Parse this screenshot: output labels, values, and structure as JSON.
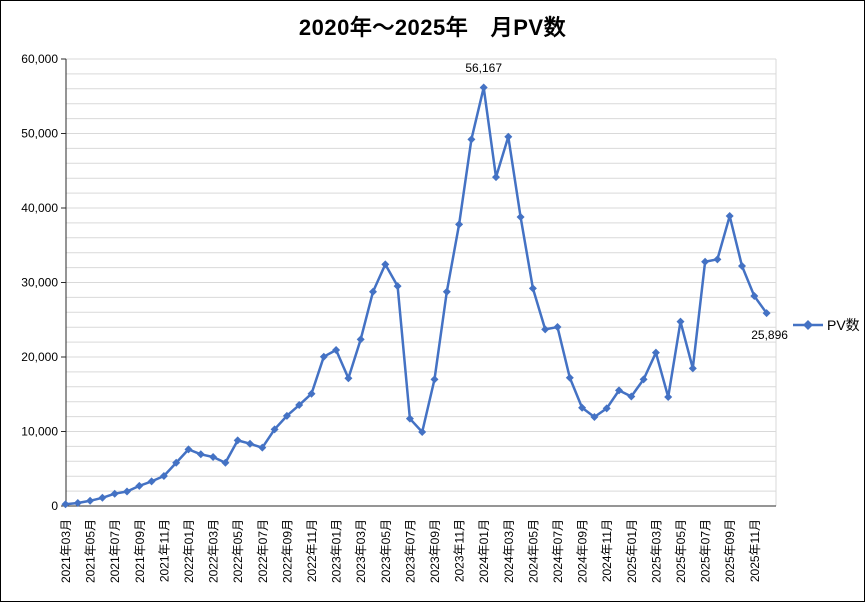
{
  "chart": {
    "title": "2020年～2025年　月PV数",
    "legend": {
      "label": "PV数",
      "position": "right"
    },
    "annotations": [
      {
        "index": 34,
        "text": "56,167",
        "placement": "above"
      },
      {
        "index": 57,
        "text": "25,896",
        "placement": "below-left"
      }
    ],
    "colors": {
      "series": "#4472C4",
      "gridline": "#D9D9D9",
      "axis": "#2B2B2B",
      "text": "#000000",
      "background": "#FFFFFF"
    }
  },
  "chart_data": {
    "type": "line",
    "title": "2020年～2025年　月PV数",
    "xlabel": "",
    "ylabel": "",
    "ylim": [
      0,
      60000
    ],
    "y_major_step": 10000,
    "y_gridline_step": 2000,
    "grid": true,
    "legend_position": "right",
    "marker": "diamond",
    "y_axis_tick_labels": [
      "0",
      "10,000",
      "20,000",
      "30,000",
      "40,000",
      "50,000",
      "60,000"
    ],
    "x_tick_label_step": 2,
    "x_tick_labels_visible": [
      "2021年03月",
      "2021年05月",
      "2021年07月",
      "2021年09月",
      "2021年11月",
      "2022年01月",
      "2022年03月",
      "2022年05月",
      "2022年07月",
      "2022年09月",
      "2022年11月",
      "2023年01月",
      "2023年03月",
      "2023年05月",
      "2023年07月",
      "2023年09月",
      "2023年11月",
      "2024年01月",
      "2024年03月",
      "2024年05月",
      "2024年07月",
      "2024年09月",
      "2024年11月",
      "2025年01月",
      "2025年03月",
      "2025年05月",
      "2025年07月",
      "2025年09月",
      "2025年11月"
    ],
    "categories": [
      "2021年03月",
      "2021年04月",
      "2021年05月",
      "2021年06月",
      "2021年07月",
      "2021年08月",
      "2021年09月",
      "2021年10月",
      "2021年11月",
      "2021年12月",
      "2022年01月",
      "2022年02月",
      "2022年03月",
      "2022年04月",
      "2022年05月",
      "2022年06月",
      "2022年07月",
      "2022年08月",
      "2022年09月",
      "2022年10月",
      "2022年11月",
      "2022年12月",
      "2023年01月",
      "2023年02月",
      "2023年03月",
      "2023年04月",
      "2023年05月",
      "2023年06月",
      "2023年07月",
      "2023年08月",
      "2023年09月",
      "2023年10月",
      "2023年11月",
      "2023年12月",
      "2024年01月",
      "2024年02月",
      "2024年03月",
      "2024年04月",
      "2024年05月",
      "2024年06月",
      "2024年07月",
      "2024年08月",
      "2024年09月",
      "2024年10月",
      "2024年11月",
      "2024年12月",
      "2025年01月",
      "2025年02月",
      "2025年03月",
      "2025年04月",
      "2025年05月",
      "2025年06月",
      "2025年07月",
      "2025年08月",
      "2025年09月",
      "2025年10月",
      "2025年11月",
      "2025年12月"
    ],
    "series": [
      {
        "name": "PV数",
        "values": [
          230,
          400,
          700,
          1100,
          1650,
          1950,
          2700,
          3300,
          4030,
          5810,
          7600,
          6940,
          6580,
          5810,
          8810,
          8360,
          7830,
          10290,
          12100,
          13550,
          15070,
          20040,
          20940,
          17140,
          22370,
          28760,
          32430,
          29520,
          11720,
          9930,
          17000,
          28760,
          37800,
          49210,
          56167,
          44150,
          49560,
          38790,
          29210,
          23710,
          24020,
          17220,
          13190,
          11950,
          13100,
          15520,
          14700,
          17000,
          20580,
          14630,
          24740,
          18480,
          32790,
          33110,
          38920,
          32210,
          28180,
          25896
        ]
      }
    ]
  }
}
